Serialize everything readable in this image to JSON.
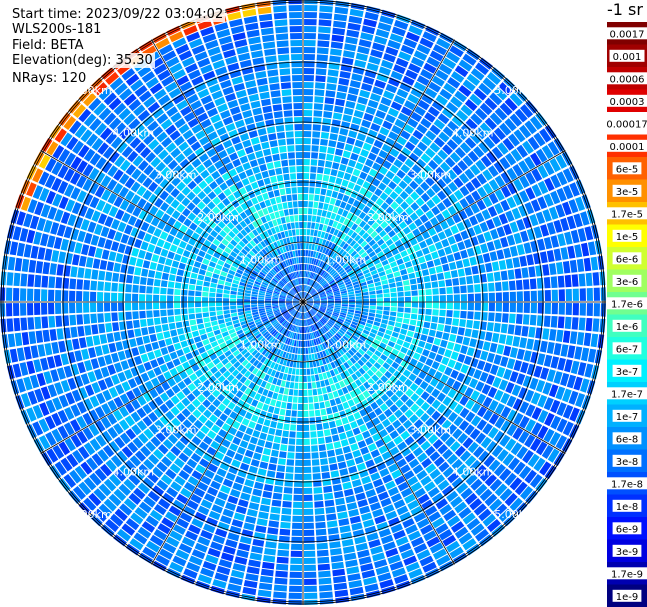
{
  "header": {
    "start_time": "Start time: 2023/09/22 03:04:02",
    "instrument": "WLS200s-181",
    "field": "Field: BETA",
    "elevation": "Elevation(deg): 35.30",
    "nrays": "NRays: 120"
  },
  "colorbar": {
    "unit": "-1 sr",
    "ticks": [
      "0.0017",
      "0.001",
      "0.0006",
      "0.0003",
      "0.00017",
      "0.0001",
      "6e-5",
      "3e-5",
      "1.7e-5",
      "1e-5",
      "6e-6",
      "3e-6",
      "1.7e-6",
      "1e-6",
      "6e-7",
      "3e-7",
      "1.7e-7",
      "1e-7",
      "6e-8",
      "3e-8",
      "1.7e-8",
      "1e-8",
      "6e-9",
      "3e-9",
      "1.7e-9",
      "1e-9"
    ],
    "colors": [
      "#800000",
      "#a00000",
      "#c00000",
      "#e00000",
      "#ffffff",
      "#ff3000",
      "#ff6000",
      "#ff9000",
      "#ffc000",
      "#ffff00",
      "#d0ff30",
      "#a0ff60",
      "#70ff90",
      "#40ffc0",
      "#20ffe0",
      "#00f0ff",
      "#00d0ff",
      "#00b0ff",
      "#0090ff",
      "#0070ff",
      "#0050ff",
      "#0030ff",
      "#0010ff",
      "#0000e0",
      "#0000b0",
      "#000080"
    ]
  },
  "chart_data": {
    "type": "heatmap",
    "projection": "polar PPI",
    "nrays": 120,
    "range_rings_km": [
      1,
      2,
      3,
      4,
      5
    ],
    "ring_labels": [
      "1.00km",
      "2.00km",
      "3.00km",
      "4.00km",
      "5.00km"
    ],
    "max_range_km": 5.1,
    "radial_spokes_deg": 30,
    "typical_beta_by_range": [
      {
        "range_km": 0.5,
        "beta": 3e-08
      },
      {
        "range_km": 1.5,
        "beta": 1.7e-07
      },
      {
        "range_km": 3.0,
        "beta": 6e-08
      },
      {
        "range_km": 4.5,
        "beta": 3e-08
      }
    ],
    "high_backscatter_sector": {
      "azimuth_deg": [
        288,
        355
      ],
      "range_km": [
        4.85,
        5.1
      ],
      "beta": 3e-05
    }
  }
}
